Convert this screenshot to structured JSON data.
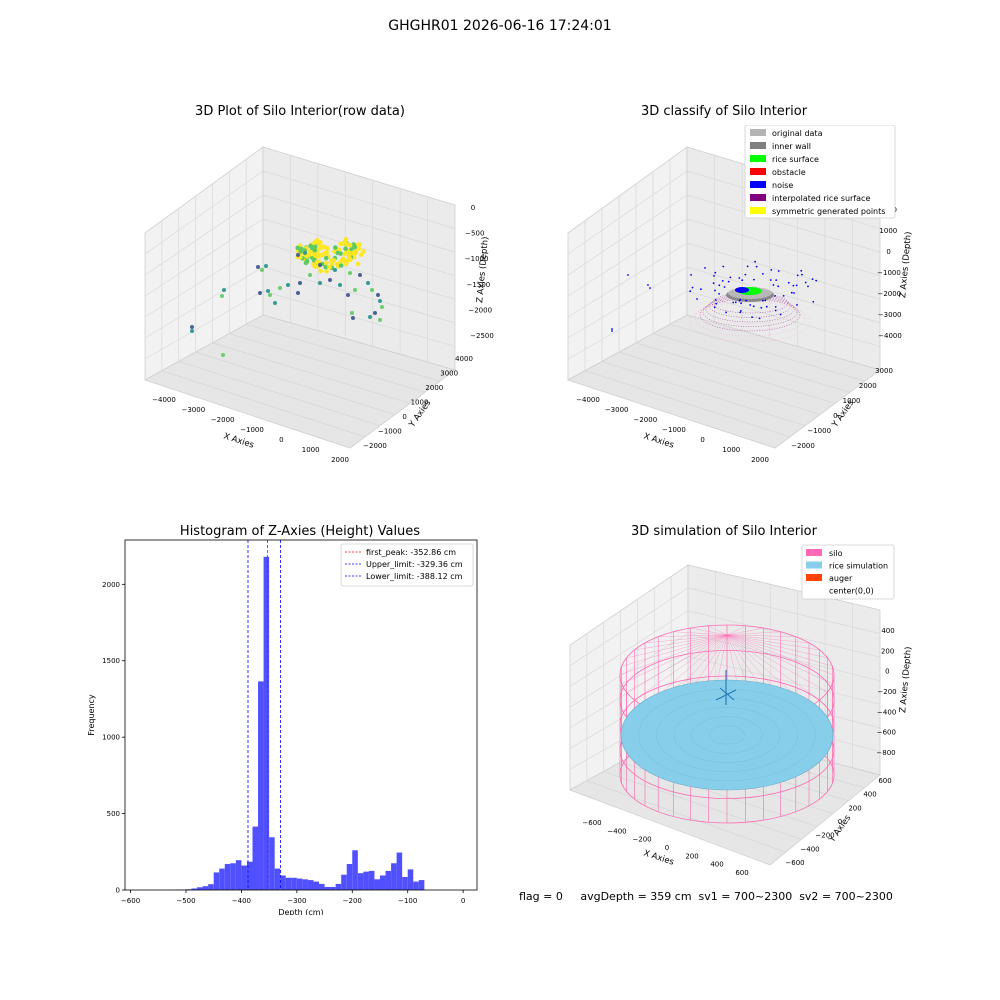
{
  "figure": {
    "suptitle": "GHGHR01 2026-06-16 17:24:01",
    "footer": "flag = 0     avgDepth = 359 cm  sv1 = 700~2300  sv2 = 700~2300"
  },
  "chart_data": [
    {
      "type": "scatter",
      "title": "3D Plot of Silo Interior(row data)",
      "xlabel": "X Axies",
      "ylabel": "Y Axies",
      "zlabel": "Z Axies (Depth)",
      "x_ticks": [
        "−4000",
        "−3000",
        "−2000",
        "−1000",
        "0",
        "1000",
        "2000"
      ],
      "y_ticks": [
        "−2000",
        "−1000",
        "0",
        "1000",
        "2000",
        "3000",
        "4000"
      ],
      "z_ticks": [
        "0",
        "−500",
        "−1000",
        "−1500",
        "−2000",
        "−2500"
      ],
      "colormap": [
        "#440154",
        "#3b528b",
        "#21918c",
        "#5ec962",
        "#fde725"
      ]
    },
    {
      "type": "scatter",
      "title": "3D classify of Silo Interior",
      "xlabel": "X Axies",
      "ylabel": "Y Axies",
      "zlabel": "Z Axies (Depth)",
      "x_ticks": [
        "−4000",
        "−3000",
        "−2000",
        "−1000",
        "0",
        "1000",
        "2000"
      ],
      "y_ticks": [
        "−2000",
        "−1000",
        "0",
        "1000",
        "2000",
        "3000"
      ],
      "z_ticks": [
        "2000",
        "1000",
        "0",
        "−1000",
        "−2000",
        "−3000",
        "−4000"
      ],
      "z_top_partial": "000",
      "legend_position": "top-right",
      "legend": [
        {
          "label": "original data",
          "color": "#b3b3b3"
        },
        {
          "label": "inner wall",
          "color": "#808080"
        },
        {
          "label": "rice surface",
          "color": "#00ff00"
        },
        {
          "label": "obstacle",
          "color": "#ff0000"
        },
        {
          "label": "noise",
          "color": "#0000ff"
        },
        {
          "label": "interpolated rice surface",
          "color": "#800080"
        },
        {
          "label": "symmetric generated points",
          "color": "#ffff00"
        }
      ]
    },
    {
      "type": "bar",
      "title": "Histogram of Z-Axies (Height) Values",
      "xlabel": "Depth (cm)",
      "ylabel": "Frequency",
      "xlim": [
        -610,
        25
      ],
      "ylim": [
        0,
        2290
      ],
      "x_ticks": [
        -600,
        -500,
        -400,
        -300,
        -200,
        -100,
        0
      ],
      "y_ticks": [
        0,
        500,
        1000,
        1500,
        2000
      ],
      "bin_width": 10,
      "bin_starts": [
        -590,
        -580,
        -570,
        -560,
        -550,
        -540,
        -530,
        -520,
        -510,
        -500,
        -490,
        -480,
        -470,
        -460,
        -450,
        -440,
        -430,
        -420,
        -410,
        -400,
        -390,
        -380,
        -370,
        -360,
        -350,
        -340,
        -330,
        -320,
        -310,
        -300,
        -290,
        -280,
        -270,
        -260,
        -250,
        -240,
        -230,
        -220,
        -210,
        -200,
        -190,
        -180,
        -170,
        -160,
        -150,
        -140,
        -130,
        -120,
        -110,
        -100,
        -90,
        -80,
        -70,
        -60,
        -50,
        -40,
        -30,
        -20,
        -10,
        0
      ],
      "values": [
        0,
        0,
        0,
        0,
        0,
        0,
        0,
        2,
        3,
        5,
        10,
        18,
        25,
        38,
        115,
        140,
        170,
        175,
        195,
        160,
        185,
        415,
        1365,
        2180,
        345,
        140,
        95,
        80,
        80,
        75,
        70,
        65,
        55,
        40,
        20,
        20,
        40,
        100,
        170,
        260,
        110,
        120,
        125,
        70,
        95,
        125,
        175,
        245,
        85,
        135,
        55,
        65,
        0,
        0,
        0,
        0,
        0,
        0,
        0,
        0
      ],
      "bar_color": "#5050ff",
      "lines": [
        {
          "label": "first_peak: -352.86 cm",
          "value": -352.86,
          "color": "#ff0000"
        },
        {
          "label": "Upper_limit: -329.36 cm",
          "value": -329.36,
          "color": "#0000ff"
        },
        {
          "label": "Lower_limit: -388.12 cm",
          "value": -388.12,
          "color": "#0000ff"
        }
      ],
      "legend_position": "top-right"
    },
    {
      "type": "scatter",
      "title": "3D simulation of Silo Interior",
      "xlabel": "X Axies",
      "ylabel": "Y Axies",
      "zlabel": "Z Axies (Depth)",
      "x_ticks": [
        "−600",
        "−400",
        "−200",
        "0",
        "200",
        "400",
        "600"
      ],
      "y_ticks": [
        "−600",
        "−400",
        "−200",
        "0",
        "200",
        "400",
        "600"
      ],
      "z_ticks": [
        "400",
        "200",
        "0",
        "−200",
        "−400",
        "−600",
        "−800"
      ],
      "legend_position": "top-right",
      "legend": [
        {
          "label": "silo",
          "color": "#ff69b4"
        },
        {
          "label": "rice simulation",
          "color": "#87ceeb"
        },
        {
          "label": "auger",
          "color": "#ff4500"
        },
        {
          "label": "center(0,0)",
          "color": ""
        }
      ]
    }
  ]
}
